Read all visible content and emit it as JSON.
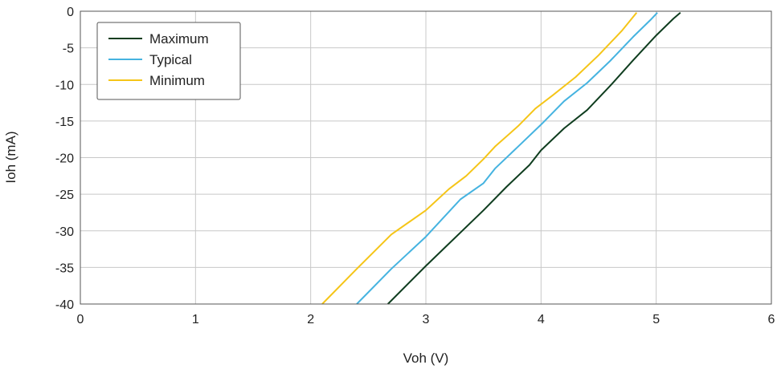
{
  "chart_data": {
    "type": "line",
    "title": "",
    "xlabel": "Voh (V)",
    "ylabel": "Ioh (mA)",
    "xlim": [
      0,
      6
    ],
    "ylim": [
      -40,
      0
    ],
    "xticks": [
      "0",
      "1",
      "2",
      "3",
      "4",
      "5",
      "6"
    ],
    "yticks": [
      "0",
      "-5",
      "-10",
      "-15",
      "-20",
      "-25",
      "-30",
      "-35",
      "-40"
    ],
    "grid": true,
    "legend_position": "top-left",
    "series": [
      {
        "name": "Maximum",
        "color": "#0f3d1f",
        "points": [
          [
            2.67,
            -40
          ],
          [
            3.0,
            -34.8
          ],
          [
            3.5,
            -27.2
          ],
          [
            3.7,
            -24.0
          ],
          [
            3.9,
            -21.0
          ],
          [
            4.0,
            -19.0
          ],
          [
            4.2,
            -16.0
          ],
          [
            4.4,
            -13.5
          ],
          [
            4.6,
            -10.2
          ],
          [
            4.8,
            -6.7
          ],
          [
            5.0,
            -3.3
          ],
          [
            5.15,
            -1.0
          ],
          [
            5.21,
            -0.2
          ]
        ]
      },
      {
        "name": "Typical",
        "color": "#45b3e0",
        "points": [
          [
            2.4,
            -40
          ],
          [
            2.7,
            -35.2
          ],
          [
            3.0,
            -30.8
          ],
          [
            3.3,
            -25.7
          ],
          [
            3.5,
            -23.5
          ],
          [
            3.6,
            -21.5
          ],
          [
            3.8,
            -18.5
          ],
          [
            4.0,
            -15.5
          ],
          [
            4.2,
            -12.3
          ],
          [
            4.4,
            -9.8
          ],
          [
            4.6,
            -6.8
          ],
          [
            4.8,
            -3.5
          ],
          [
            4.95,
            -1.2
          ],
          [
            5.01,
            -0.2
          ]
        ]
      },
      {
        "name": "Minimum",
        "color": "#f5c518",
        "points": [
          [
            2.1,
            -40
          ],
          [
            2.4,
            -35.2
          ],
          [
            2.7,
            -30.5
          ],
          [
            3.0,
            -27.2
          ],
          [
            3.2,
            -24.3
          ],
          [
            3.35,
            -22.5
          ],
          [
            3.5,
            -20.2
          ],
          [
            3.6,
            -18.5
          ],
          [
            3.8,
            -15.7
          ],
          [
            3.95,
            -13.3
          ],
          [
            4.1,
            -11.5
          ],
          [
            4.3,
            -9.0
          ],
          [
            4.5,
            -6.0
          ],
          [
            4.7,
            -2.7
          ],
          [
            4.83,
            -0.2
          ]
        ]
      }
    ]
  }
}
